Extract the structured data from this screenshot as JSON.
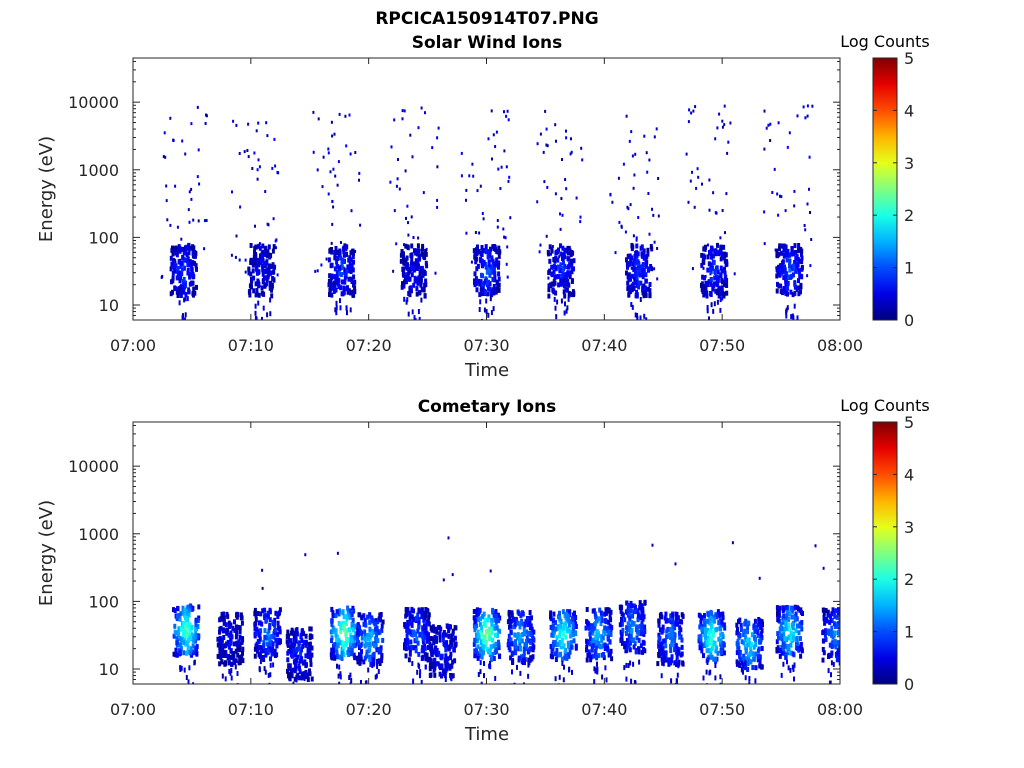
{
  "figure_title": "RPCICA150914T07.PNG",
  "chart_data": [
    {
      "type": "heatmap",
      "title": "Solar Wind Ions",
      "xlabel": "Time",
      "ylabel": "Energy (eV)",
      "x_ticks": [
        "07:00",
        "07:10",
        "07:20",
        "07:30",
        "07:40",
        "07:50",
        "08:00"
      ],
      "x_range_minutes": [
        0,
        60
      ],
      "y_ticks": [
        "10",
        "100",
        "1000",
        "10000"
      ],
      "ylim": [
        6,
        45000
      ],
      "y_scale": "log",
      "colorbar": {
        "label": "Log Counts",
        "ticks": [
          "0",
          "1",
          "2",
          "3",
          "4",
          "5"
        ],
        "range": [
          0,
          5
        ],
        "colormap": "jet"
      },
      "events_minutes": [
        4.3,
        10.4,
        17.2,
        23.8,
        29.9,
        36.3,
        42.5,
        49.0,
        55.5
      ],
      "blobs": [
        {
          "t": 4.2,
          "e": 35,
          "v": 0.9
        },
        {
          "t": 10.8,
          "e": 35,
          "v": 0.6
        },
        {
          "t": 17.6,
          "e": 35,
          "v": 0.9
        },
        {
          "t": 23.7,
          "e": 35,
          "v": 0.6
        },
        {
          "t": 29.9,
          "e": 35,
          "v": 1.0
        },
        {
          "t": 36.2,
          "e": 35,
          "v": 0.8
        },
        {
          "t": 42.8,
          "e": 35,
          "v": 0.9
        },
        {
          "t": 49.2,
          "e": 35,
          "v": 0.9
        },
        {
          "t": 55.6,
          "e": 35,
          "v": 1.0
        }
      ]
    },
    {
      "type": "heatmap",
      "title": "Cometary Ions",
      "xlabel": "Time",
      "ylabel": "Energy (eV)",
      "x_ticks": [
        "07:00",
        "07:10",
        "07:20",
        "07:30",
        "07:40",
        "07:50",
        "08:00"
      ],
      "x_range_minutes": [
        0,
        60
      ],
      "y_ticks": [
        "10",
        "100",
        "1000",
        "10000"
      ],
      "ylim": [
        6,
        45000
      ],
      "y_scale": "log",
      "colorbar": {
        "label": "Log Counts",
        "ticks": [
          "0",
          "1",
          "2",
          "3",
          "4",
          "5"
        ],
        "range": [
          0,
          5
        ],
        "colormap": "jet"
      },
      "blobs": [
        {
          "t": 4.4,
          "e": 40,
          "v": 2.3
        },
        {
          "t": 8.1,
          "e": 30,
          "v": 0.6
        },
        {
          "t": 11.3,
          "e": 35,
          "v": 1.2
        },
        {
          "t": 14.0,
          "e": 18,
          "v": 0.8
        },
        {
          "t": 17.8,
          "e": 37,
          "v": 2.5
        },
        {
          "t": 20.0,
          "e": 30,
          "v": 1.6
        },
        {
          "t": 24.0,
          "e": 35,
          "v": 1.1
        },
        {
          "t": 26.2,
          "e": 20,
          "v": 0.8
        },
        {
          "t": 29.9,
          "e": 35,
          "v": 2.6
        },
        {
          "t": 32.8,
          "e": 32,
          "v": 1.5
        },
        {
          "t": 36.4,
          "e": 35,
          "v": 2.1
        },
        {
          "t": 39.4,
          "e": 35,
          "v": 1.6
        },
        {
          "t": 42.3,
          "e": 45,
          "v": 1.4
        },
        {
          "t": 45.5,
          "e": 30,
          "v": 1.3
        },
        {
          "t": 49.0,
          "e": 33,
          "v": 2.2
        },
        {
          "t": 52.2,
          "e": 25,
          "v": 1.8
        },
        {
          "t": 55.6,
          "e": 38,
          "v": 2.0
        },
        {
          "t": 59.5,
          "e": 35,
          "v": 1.3
        }
      ]
    }
  ]
}
